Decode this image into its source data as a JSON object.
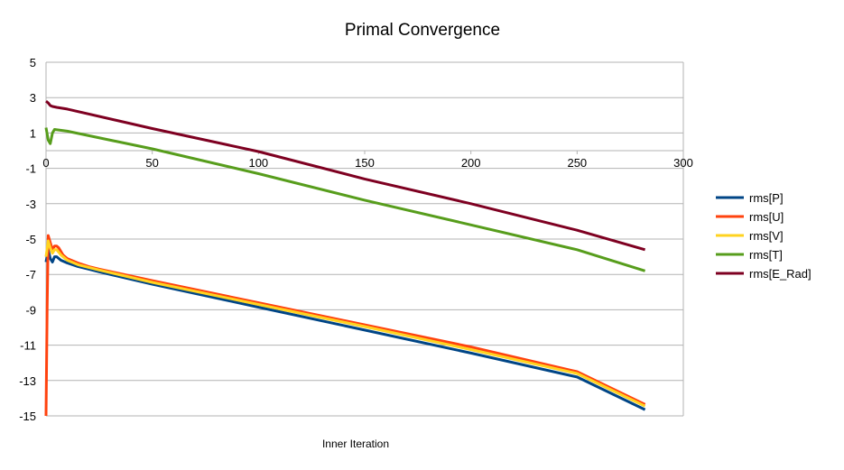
{
  "chart_data": {
    "type": "line",
    "title": "Primal Convergence",
    "xlabel": "Inner Iteration",
    "ylabel": "",
    "xlim": [
      0,
      300
    ],
    "ylim": [
      -15,
      5
    ],
    "x_ticks": [
      0,
      50,
      100,
      150,
      200,
      250,
      300
    ],
    "y_ticks": [
      5,
      3,
      1,
      -1,
      -3,
      -5,
      -7,
      -9,
      -11,
      -13,
      -15
    ],
    "x_tick_labels": [
      "0",
      "50",
      "100",
      "150",
      "200",
      "250",
      "300"
    ],
    "y_tick_labels": [
      "5",
      "3",
      "1",
      "-1",
      "-3",
      "-5",
      "-7",
      "-9",
      "-11",
      "-13",
      "-15"
    ],
    "x_axis_crosses_y": 0,
    "grid": true,
    "legend_position": "right",
    "series": [
      {
        "name": "rms[P]",
        "color": "#004586",
        "points": [
          [
            0,
            -6.3
          ],
          [
            1,
            -5.6
          ],
          [
            2,
            -6.1
          ],
          [
            3,
            -6.3
          ],
          [
            4,
            -6.0
          ],
          [
            5,
            -6.0
          ],
          [
            7,
            -6.2
          ],
          [
            10,
            -6.35
          ],
          [
            15,
            -6.55
          ],
          [
            20,
            -6.7
          ],
          [
            25,
            -6.85
          ],
          [
            50,
            -7.55
          ],
          [
            100,
            -8.85
          ],
          [
            150,
            -10.15
          ],
          [
            200,
            -11.45
          ],
          [
            250,
            -12.8
          ],
          [
            282,
            -14.65
          ]
        ]
      },
      {
        "name": "rms[U]",
        "color": "#ff420e",
        "points": [
          [
            0,
            -15.0
          ],
          [
            0.5,
            -9.0
          ],
          [
            1,
            -4.8
          ],
          [
            2,
            -5.2
          ],
          [
            3,
            -5.6
          ],
          [
            4,
            -5.4
          ],
          [
            5,
            -5.4
          ],
          [
            6,
            -5.5
          ],
          [
            8,
            -5.9
          ],
          [
            10,
            -6.1
          ],
          [
            15,
            -6.35
          ],
          [
            20,
            -6.55
          ],
          [
            25,
            -6.7
          ],
          [
            50,
            -7.35
          ],
          [
            100,
            -8.6
          ],
          [
            150,
            -9.85
          ],
          [
            200,
            -11.1
          ],
          [
            250,
            -12.5
          ],
          [
            282,
            -14.35
          ]
        ]
      },
      {
        "name": "rms[V]",
        "color": "#ffd320",
        "points": [
          [
            0,
            -6.0
          ],
          [
            1,
            -5.1
          ],
          [
            2,
            -5.5
          ],
          [
            3,
            -5.8
          ],
          [
            4,
            -5.6
          ],
          [
            5,
            -5.6
          ],
          [
            7,
            -5.9
          ],
          [
            10,
            -6.2
          ],
          [
            15,
            -6.45
          ],
          [
            20,
            -6.6
          ],
          [
            25,
            -6.75
          ],
          [
            50,
            -7.45
          ],
          [
            100,
            -8.7
          ],
          [
            150,
            -9.95
          ],
          [
            200,
            -11.25
          ],
          [
            250,
            -12.6
          ],
          [
            282,
            -14.45
          ]
        ]
      },
      {
        "name": "rms[T]",
        "color": "#579d1c",
        "points": [
          [
            0,
            1.3
          ],
          [
            1,
            0.6
          ],
          [
            2,
            0.4
          ],
          [
            3,
            1.0
          ],
          [
            4,
            1.2
          ],
          [
            10,
            1.1
          ],
          [
            50,
            0.1
          ],
          [
            100,
            -1.3
          ],
          [
            150,
            -2.8
          ],
          [
            200,
            -4.2
          ],
          [
            250,
            -5.6
          ],
          [
            282,
            -6.8
          ]
        ]
      },
      {
        "name": "rms[E_Rad]",
        "color": "#7e0021",
        "points": [
          [
            0,
            2.8
          ],
          [
            1,
            2.7
          ],
          [
            2,
            2.55
          ],
          [
            3,
            2.5
          ],
          [
            5,
            2.45
          ],
          [
            10,
            2.35
          ],
          [
            50,
            1.25
          ],
          [
            100,
            -0.05
          ],
          [
            150,
            -1.6
          ],
          [
            200,
            -3.0
          ],
          [
            250,
            -4.5
          ],
          [
            282,
            -5.6
          ]
        ]
      }
    ]
  }
}
